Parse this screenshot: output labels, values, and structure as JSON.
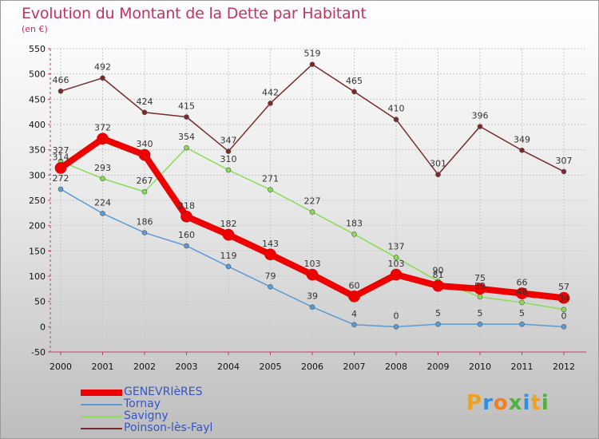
{
  "title": "Evolution du Montant de la Dette par Habitant",
  "unit": "(en €)",
  "logo": {
    "parts": [
      {
        "text": "P",
        "color": "#f0a020"
      },
      {
        "text": "r",
        "color": "#3090e0"
      },
      {
        "text": "o",
        "color": "#f08020"
      },
      {
        "text": "x",
        "color": "#50b040"
      },
      {
        "text": "i",
        "color": "#3090e0"
      },
      {
        "text": "t",
        "color": "#f0a020"
      },
      {
        "text": "i",
        "color": "#50b040"
      }
    ]
  },
  "chart_data": {
    "type": "line",
    "categories": [
      "2000",
      "2001",
      "2002",
      "2003",
      "2004",
      "2005",
      "2006",
      "2007",
      "2008",
      "2009",
      "2010",
      "2011",
      "2012"
    ],
    "ylim": [
      -50,
      550
    ],
    "yticks": [
      -50,
      0,
      50,
      100,
      150,
      200,
      250,
      300,
      350,
      400,
      450,
      500,
      550
    ],
    "grid": true,
    "legend": "bottom-left",
    "series": [
      {
        "name": "GENEVRIèRES",
        "color": "#ee0000",
        "values": [
          314,
          372,
          340,
          218,
          182,
          143,
          103,
          60,
          103,
          81,
          75,
          66,
          57
        ],
        "labels": [
          "314",
          "372",
          "340",
          "218",
          "182",
          "143",
          "103",
          "60",
          "103",
          "81",
          "75",
          "66",
          "57"
        ],
        "width": 8
      },
      {
        "name": "Tornay",
        "color": "#5b9bd5",
        "values": [
          272,
          224,
          186,
          160,
          119,
          79,
          39,
          4,
          0,
          5,
          5,
          5,
          0
        ],
        "labels": [
          "272",
          "224",
          "186",
          "160",
          "119",
          "79",
          "39",
          "4",
          "0",
          "5",
          "5",
          "5",
          "0"
        ],
        "width": 1.5
      },
      {
        "name": "Savigny",
        "color": "#88dd55",
        "values": [
          327,
          293,
          267,
          354,
          310,
          271,
          227,
          183,
          137,
          90,
          59,
          48,
          34
        ],
        "labels": [
          "327",
          "293",
          "267",
          "354",
          "310",
          "271",
          "227",
          "183",
          "137",
          "90",
          "59",
          "48",
          "34"
        ],
        "width": 1.5
      },
      {
        "name": "Poinson-lès-Fayl",
        "color": "#7a2a2a",
        "values": [
          466,
          492,
          424,
          415,
          347,
          442,
          519,
          465,
          410,
          301,
          396,
          349,
          307
        ],
        "labels": [
          "466",
          "492",
          "424",
          "415",
          "347",
          "442",
          "519",
          "465",
          "410",
          "301",
          "396",
          "349",
          "307"
        ],
        "width": 1.5
      }
    ]
  }
}
